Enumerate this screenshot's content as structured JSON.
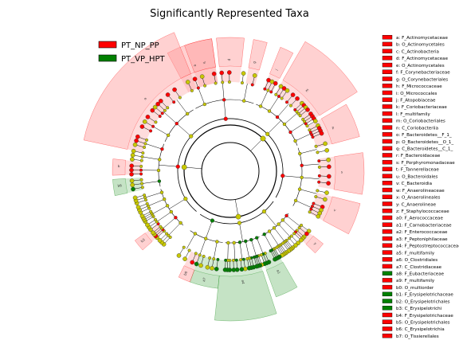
{
  "chart_data": {
    "type": "cladogram",
    "title": "Significantly Represented Taxa",
    "groups": [
      {
        "name": "PT_NP_PP",
        "color": "#ff0000",
        "shade": "#ff9a9a"
      },
      {
        "name": "PT_VP_HPT",
        "color": "#008000",
        "shade": "#7fc27f"
      }
    ],
    "node_color_nonsig": "#c8c800",
    "key": [
      {
        "code": "a",
        "taxon": "F_Actinomycetaceae",
        "group": "PT_NP_PP"
      },
      {
        "code": "b",
        "taxon": "O_Actinomycetales",
        "group": "PT_NP_PP"
      },
      {
        "code": "c",
        "taxon": "C_Actinobacteria",
        "group": "PT_NP_PP"
      },
      {
        "code": "d",
        "taxon": "F_Actinomycetaceae",
        "group": "PT_NP_PP"
      },
      {
        "code": "e",
        "taxon": "O_Actinomycetales",
        "group": "PT_NP_PP"
      },
      {
        "code": "f",
        "taxon": "F_Corynebacteriaceae",
        "group": "PT_NP_PP"
      },
      {
        "code": "g",
        "taxon": "O_Corynebacteriales",
        "group": "PT_NP_PP"
      },
      {
        "code": "h",
        "taxon": "F_Micrococcaceae",
        "group": "PT_NP_PP"
      },
      {
        "code": "i",
        "taxon": "O_Micrococcales",
        "group": "PT_NP_PP"
      },
      {
        "code": "j",
        "taxon": "F_Atopobiaceae",
        "group": "PT_NP_PP"
      },
      {
        "code": "k",
        "taxon": "F_Coriobacteriaceae",
        "group": "PT_NP_PP"
      },
      {
        "code": "l",
        "taxon": "F_multifamily",
        "group": "PT_NP_PP"
      },
      {
        "code": "m",
        "taxon": "O_Coriobacteriales",
        "group": "PT_NP_PP"
      },
      {
        "code": "n",
        "taxon": "C_Coriobacteriia",
        "group": "PT_NP_PP"
      },
      {
        "code": "o",
        "taxon": "F_Bacteroidetes__F_1_",
        "group": "PT_NP_PP"
      },
      {
        "code": "p",
        "taxon": "O_Bacteroidetes__O_1_",
        "group": "PT_NP_PP"
      },
      {
        "code": "q",
        "taxon": "C_Bacteroidetes__C_1_",
        "group": "PT_NP_PP"
      },
      {
        "code": "r",
        "taxon": "F_Bacteroidaceae",
        "group": "PT_NP_PP"
      },
      {
        "code": "s",
        "taxon": "F_Porphyromonadaceae",
        "group": "PT_NP_PP"
      },
      {
        "code": "t",
        "taxon": "F_Tannerellaceae",
        "group": "PT_NP_PP"
      },
      {
        "code": "u",
        "taxon": "O_Bacteroidales",
        "group": "PT_NP_PP"
      },
      {
        "code": "v",
        "taxon": "C_Bacteroidia",
        "group": "PT_NP_PP"
      },
      {
        "code": "w",
        "taxon": "F_Anaerolineaceae",
        "group": "PT_NP_PP"
      },
      {
        "code": "x",
        "taxon": "O_Anaerolineales",
        "group": "PT_NP_PP"
      },
      {
        "code": "y",
        "taxon": "C_Anaerolineae",
        "group": "PT_NP_PP"
      },
      {
        "code": "z",
        "taxon": "F_Staphylococcaceae",
        "group": "PT_NP_PP"
      },
      {
        "code": "a0",
        "taxon": "F_Aerococcaceae",
        "group": "PT_NP_PP"
      },
      {
        "code": "a1",
        "taxon": "F_Carnobacteriaceae",
        "group": "PT_NP_PP"
      },
      {
        "code": "a2",
        "taxon": "F_Enterococcaceae",
        "group": "PT_NP_PP"
      },
      {
        "code": "a3",
        "taxon": "F_Peptoniphilaceae",
        "group": "PT_NP_PP"
      },
      {
        "code": "a4",
        "taxon": "F_Peptostreptococcaceae",
        "group": "PT_NP_PP"
      },
      {
        "code": "a5",
        "taxon": "F_multifamily",
        "group": "PT_NP_PP"
      },
      {
        "code": "a6",
        "taxon": "O_Clostridiales",
        "group": "PT_NP_PP"
      },
      {
        "code": "a7",
        "taxon": "C_Clostridiaceae",
        "group": "PT_NP_PP"
      },
      {
        "code": "a8",
        "taxon": "F_Eubacteriaceae",
        "group": "PT_VP_HPT"
      },
      {
        "code": "a9",
        "taxon": "F_multifamily",
        "group": "PT_NP_PP"
      },
      {
        "code": "b0",
        "taxon": "O_multiorder",
        "group": "PT_NP_PP"
      },
      {
        "code": "b1",
        "taxon": "F_Erysipelotrichaceae",
        "group": "PT_VP_HPT"
      },
      {
        "code": "b2",
        "taxon": "O_Erysipelotrichales",
        "group": "PT_VP_HPT"
      },
      {
        "code": "b3",
        "taxon": "C_Erysipelotrichi",
        "group": "PT_VP_HPT"
      },
      {
        "code": "b4",
        "taxon": "F_Erysipelotrichaceae",
        "group": "PT_NP_PP"
      },
      {
        "code": "b5",
        "taxon": "O_Erysipelotrichales",
        "group": "PT_NP_PP"
      },
      {
        "code": "b6",
        "taxon": "C_Erysipelotrichia",
        "group": "PT_NP_PP"
      },
      {
        "code": "b7",
        "taxon": "O_Tissierellales",
        "group": "PT_NP_PP"
      }
    ],
    "sectors": [
      {
        "start": -28,
        "end": -8,
        "group": "PT_NP_PP",
        "ring": 2,
        "label": ""
      },
      {
        "start": -6,
        "end": 6,
        "group": "PT_NP_PP",
        "ring": 2,
        "label": ""
      },
      {
        "start": 10,
        "end": 16,
        "group": "PT_NP_PP",
        "ring": 2,
        "label": ""
      },
      {
        "start": 22,
        "end": 28,
        "group": "PT_NP_PP",
        "ring": 2,
        "label": ""
      },
      {
        "start": 30,
        "end": 58,
        "group": "PT_NP_PP",
        "ring": 3,
        "label": ""
      },
      {
        "start": 60,
        "end": 75,
        "group": "PT_NP_PP",
        "ring": 2,
        "label": ""
      },
      {
        "start": 82,
        "end": 100,
        "group": "PT_NP_PP",
        "ring": 2,
        "label": ""
      },
      {
        "start": 104,
        "end": 118,
        "group": "PT_NP_PP",
        "ring": 2,
        "label": ""
      },
      {
        "start": 128,
        "end": 134,
        "group": "PT_NP_PP",
        "ring": 1,
        "label": ""
      },
      {
        "start": 150,
        "end": 160,
        "group": "PT_VP_HPT",
        "ring": 2,
        "label": ""
      },
      {
        "start": 162,
        "end": 186,
        "group": "PT_VP_HPT",
        "ring": 3,
        "label": ""
      },
      {
        "start": 186,
        "end": 200,
        "group": "PT_VP_HPT",
        "ring": 1,
        "label": ""
      },
      {
        "start": 200,
        "end": 206,
        "group": "PT_NP_PP",
        "ring": 1,
        "label": ""
      },
      {
        "start": 228,
        "end": 234,
        "group": "PT_NP_PP",
        "ring": 1,
        "label": ""
      },
      {
        "start": 258,
        "end": 266,
        "group": "PT_VP_HPT",
        "ring": 1,
        "label": ""
      },
      {
        "start": 268,
        "end": 276,
        "group": "PT_NP_PP",
        "ring": 1,
        "label": ""
      },
      {
        "start": 282,
        "end": 338,
        "group": "PT_NP_PP",
        "ring": 3,
        "label": ""
      },
      {
        "start": 340,
        "end": 352,
        "group": "PT_NP_PP",
        "ring": 2,
        "label": ""
      }
    ]
  }
}
